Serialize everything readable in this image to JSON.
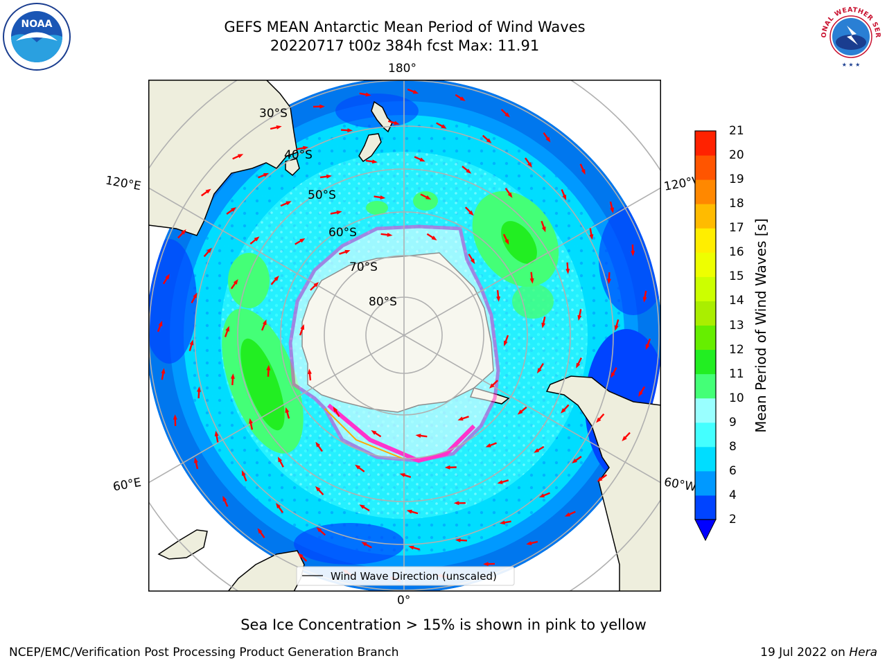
{
  "header": {
    "title_line1": "GEFS MEAN Antarctic Mean Period of Wind Waves",
    "title_line2": "20220717 t00z 384h fcst   Max: 11.91"
  },
  "map": {
    "projection": "south polar stereographic",
    "lon_labels": {
      "top": "180°",
      "bottom": "0°",
      "upper_left": "120°E",
      "upper_right": "120°W",
      "lower_left": "60°E",
      "lower_right": "60°W"
    },
    "lat_labels": [
      "30°S",
      "40°S",
      "50°S",
      "60°S",
      "70°S",
      "80°S"
    ],
    "legend_label": "Wind Wave Direction (unscaled)",
    "sea_ice_color": "#ff33cc",
    "land_color": "#eeeedd",
    "arrow_color": "#ff0000"
  },
  "colorbar": {
    "label": "Mean Period of Wind Waves [s]",
    "ticks": [
      "2",
      "4",
      "6",
      "8",
      "9",
      "10",
      "11",
      "12",
      "13",
      "14",
      "15",
      "16",
      "17",
      "18",
      "19",
      "20",
      "21"
    ],
    "colors": [
      "#0044ff",
      "#0099ff",
      "#00ddff",
      "#44ffff",
      "#99ffff",
      "#44ff77",
      "#22ee22",
      "#66ee00",
      "#aaee00",
      "#ccff00",
      "#eeff00",
      "#ffee00",
      "#ffbb00",
      "#ff8800",
      "#ff5500",
      "#ff2200"
    ],
    "extend_color": "#0000ff"
  },
  "caption": "Sea Ice Concentration > 15% is shown in pink to yellow",
  "footer": {
    "left": "NCEP/EMC/Verification Post Processing Product Generation Branch",
    "right_prefix": "19 Jul 2022 on ",
    "right_machine": "Hera"
  },
  "logos": {
    "noaa_text": "NOAA",
    "nws_text": "NATIONAL WEATHER SERVICE"
  }
}
